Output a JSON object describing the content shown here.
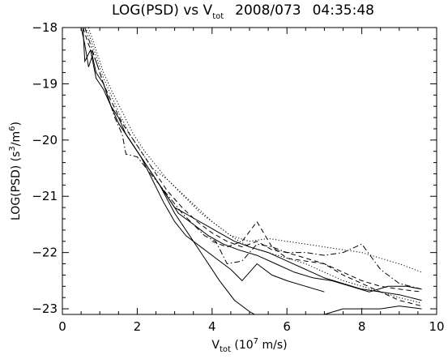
{
  "chart_data": {
    "type": "line",
    "title": {
      "main": "LOG(PSD)  vs  V",
      "main_sub": "tot",
      "date": "2008/073",
      "time": "04:35:48"
    },
    "xlabel": {
      "text": "V",
      "sub": "tot",
      "unit": " (10",
      "unit_sup": "7",
      "unit_rest": " m/s)"
    },
    "ylabel": {
      "text": "LOG(PSD)  (s",
      "sup1": "3",
      "mid": "/m",
      "sup2": "6",
      "end": ")"
    },
    "xlim": [
      0,
      10
    ],
    "ylim": [
      -23.1,
      -18
    ],
    "xticks": [
      0,
      2,
      4,
      6,
      8,
      10
    ],
    "xtick_labels": [
      "0",
      "2",
      "4",
      "6",
      "8",
      "10"
    ],
    "yticks": [
      -23,
      -22,
      -21,
      -20,
      -19,
      -18
    ],
    "ytick_labels": [
      "−23",
      "−22",
      "−21",
      "−20",
      "−19",
      "−18"
    ],
    "grid": false,
    "legend": "none",
    "series": [
      {
        "style": "solid",
        "x": [
          0.5,
          0.6,
          0.7,
          0.8,
          0.9,
          1.1,
          1.3,
          1.5,
          1.7,
          2.0,
          2.3,
          2.7,
          3.0,
          3.4,
          3.8,
          4.2,
          4.6,
          5.0,
          5.5,
          6.0,
          6.5,
          7.0,
          7.5,
          8.0,
          8.5,
          9.0,
          9.6
        ],
        "y": [
          -18,
          -18.3,
          -18.7,
          -18.5,
          -18.8,
          -19.0,
          -19.4,
          -19.7,
          -19.9,
          -20.2,
          -20.5,
          -20.9,
          -21.2,
          -21.35,
          -21.5,
          -21.65,
          -21.8,
          -21.9,
          -22.0,
          -22.15,
          -22.3,
          -22.45,
          -22.55,
          -22.65,
          -22.7,
          -22.75,
          -22.85
        ]
      },
      {
        "style": "solid",
        "x": [
          0.55,
          0.6,
          0.75,
          0.9,
          1.1,
          1.3,
          1.5,
          1.7,
          1.9,
          2.2,
          2.5,
          2.8,
          3.1,
          3.5,
          3.9,
          4.3,
          4.7,
          5.2,
          5.7,
          6.2,
          6.7,
          7.2,
          7.7,
          8.2,
          8.7,
          9.2,
          9.6
        ],
        "y": [
          -18,
          -18.6,
          -18.4,
          -18.9,
          -19.1,
          -19.4,
          -19.6,
          -19.9,
          -20.1,
          -20.4,
          -20.7,
          -21.0,
          -21.3,
          -21.5,
          -21.7,
          -21.85,
          -21.95,
          -22.05,
          -22.2,
          -22.35,
          -22.45,
          -22.5,
          -22.6,
          -22.7,
          -22.6,
          -22.6,
          -22.65
        ]
      },
      {
        "style": "solid",
        "x": [
          1.5,
          1.8,
          2.1,
          2.4,
          2.7,
          3.0,
          3.3,
          3.7,
          4.1,
          4.5,
          4.8,
          5.2,
          5.6,
          6.0,
          6.5,
          7.0
        ],
        "y": [
          -19.7,
          -20.0,
          -20.3,
          -20.7,
          -21.1,
          -21.45,
          -21.7,
          -21.9,
          -22.1,
          -22.3,
          -22.5,
          -22.2,
          -22.4,
          -22.5,
          -22.6,
          -22.7
        ]
      },
      {
        "style": "solid",
        "x": [
          2.6,
          3.0,
          3.4,
          3.8,
          4.2,
          4.6,
          5.0,
          5.4,
          5.8,
          6.2,
          6.6,
          7.0,
          7.5,
          8.0,
          8.5,
          9.0,
          9.6
        ],
        "y": [
          -20.8,
          -21.3,
          -21.7,
          -22.1,
          -22.5,
          -22.85,
          -23.05,
          -23.2,
          -23.25,
          -23.2,
          -23.1,
          -23.1,
          -23.0,
          -23.0,
          -23.0,
          -22.95,
          -23.0
        ]
      },
      {
        "style": "dotted",
        "x": [
          0.6,
          0.7,
          0.9,
          1.1,
          1.3,
          1.5,
          1.8,
          2.1,
          2.4,
          2.8,
          3.2,
          3.6,
          4.0,
          4.5,
          5.0,
          5.5,
          6.0,
          6.5,
          7.0,
          7.5,
          8.0,
          8.5,
          9.0,
          9.6
        ],
        "y": [
          -18,
          -18.1,
          -18.5,
          -18.9,
          -19.2,
          -19.5,
          -19.9,
          -20.2,
          -20.5,
          -20.7,
          -20.95,
          -21.2,
          -21.45,
          -21.7,
          -21.8,
          -21.75,
          -21.8,
          -21.85,
          -21.9,
          -21.95,
          -22.0,
          -22.1,
          -22.2,
          -22.35
        ]
      },
      {
        "style": "dotted",
        "x": [
          0.7,
          0.9,
          1.1,
          1.3,
          1.6,
          1.9,
          2.2,
          2.5,
          2.8,
          3.1,
          3.4,
          3.7,
          4.0,
          4.3,
          4.6,
          5.0,
          5.5,
          6.0,
          6.5,
          7.0,
          7.5,
          8.0,
          8.5,
          9.0,
          9.6
        ],
        "y": [
          -18,
          -18.4,
          -18.8,
          -19.1,
          -19.5,
          -19.9,
          -20.2,
          -20.45,
          -20.7,
          -20.9,
          -21.1,
          -21.3,
          -21.45,
          -21.6,
          -21.75,
          -21.9,
          -22.0,
          -22.1,
          -22.2,
          -22.35,
          -22.5,
          -22.6,
          -22.7,
          -22.8,
          -22.9
        ]
      },
      {
        "style": "dashed",
        "x": [
          0.55,
          0.7,
          0.9,
          1.1,
          1.3,
          1.6,
          1.9,
          2.2,
          2.5,
          2.8,
          3.2,
          3.6,
          4.0,
          4.4,
          4.8,
          5.2,
          5.6,
          6.0,
          6.5,
          7.0,
          7.5,
          8.0,
          8.5,
          9.0,
          9.6
        ],
        "y": [
          -18,
          -18.3,
          -18.6,
          -19.0,
          -19.3,
          -19.7,
          -20.0,
          -20.3,
          -20.6,
          -20.9,
          -21.2,
          -21.45,
          -21.65,
          -21.8,
          -21.9,
          -21.8,
          -21.95,
          -22.0,
          -22.1,
          -22.2,
          -22.35,
          -22.5,
          -22.6,
          -22.65,
          -22.7
        ]
      },
      {
        "style": "dashed",
        "x": [
          4.0,
          4.4,
          4.8,
          5.2,
          5.6,
          6.0,
          6.5,
          7.0,
          7.5,
          8.0,
          8.5,
          9.0,
          9.6
        ],
        "y": [
          -21.8,
          -21.9,
          -21.8,
          -21.45,
          -21.9,
          -22.1,
          -22.15,
          -22.2,
          -22.4,
          -22.55,
          -22.7,
          -22.85,
          -22.95
        ]
      },
      {
        "style": "dashdot",
        "x": [
          0.6,
          0.8,
          1.0,
          1.2,
          1.4,
          1.6,
          1.7,
          2.0,
          2.3,
          2.6,
          2.9,
          3.2,
          3.5,
          3.8,
          4.1,
          4.4,
          4.8,
          5.2,
          5.6,
          6.0,
          6.5,
          7.0,
          7.5,
          8.0,
          8.5,
          9.0,
          9.6
        ],
        "y": [
          -18,
          -18.4,
          -18.8,
          -19.2,
          -19.6,
          -19.9,
          -20.25,
          -20.3,
          -20.55,
          -20.8,
          -21.05,
          -21.3,
          -21.5,
          -21.7,
          -21.8,
          -22.2,
          -22.15,
          -21.85,
          -21.9,
          -22.0,
          -22.0,
          -22.05,
          -22.0,
          -21.85,
          -22.3,
          -22.55,
          -22.65
        ]
      }
    ]
  }
}
